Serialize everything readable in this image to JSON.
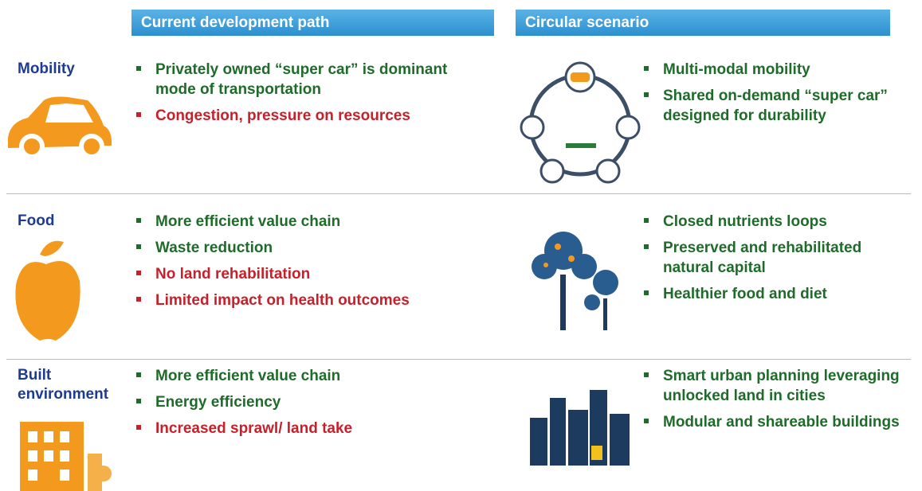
{
  "header": {
    "current": "Current development path",
    "circular": "Circular scenario"
  },
  "rows": [
    {
      "label": "Mobility",
      "current": [
        {
          "text": "Privately owned “super car” is dominant mode of transportation",
          "color": "#1f6b2a"
        },
        {
          "text": "Congestion, pressure on resources",
          "color": "#c8202a"
        }
      ],
      "circular": [
        "Multi-modal mobility",
        "Shared on-demand “super car” designed for durability"
      ]
    },
    {
      "label": "Food",
      "current": [
        {
          "text": "More efficient value chain",
          "color": "#1f6b2a"
        },
        {
          "text": "Waste reduction",
          "color": "#1f6b2a"
        },
        {
          "text": "No land rehabilitation",
          "color": "#c8202a"
        },
        {
          "text": "Limited impact on health outcomes",
          "color": "#c8202a"
        }
      ],
      "circular": [
        "Closed nutrients loops",
        "Preserved and rehabilitated natural capital",
        "Healthier food and diet"
      ]
    },
    {
      "label": "Built environment",
      "current": [
        {
          "text": "More efficient value chain",
          "color": "#1f6b2a"
        },
        {
          "text": "Energy efficiency",
          "color": "#1f6b2a"
        },
        {
          "text": "Increased sprawl/ land take",
          "color": "#c8202a"
        }
      ],
      "circular": [
        "Smart urban planning leveraging unlocked land in cities",
        "Modular and shareable buildings"
      ]
    }
  ]
}
